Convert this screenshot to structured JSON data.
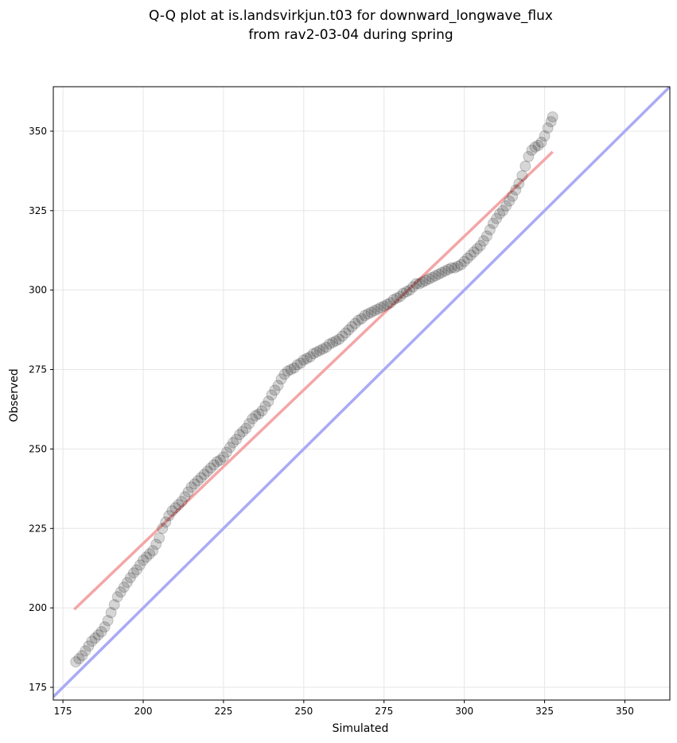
{
  "chart_data": {
    "type": "scatter",
    "title": "Q-Q plot at is.landsvirkjun.t03 for downward_longwave_flux",
    "subtitle": "from rav2-03-04 during spring",
    "xlabel": "Simulated",
    "ylabel": "Observed",
    "xlim": [
      172,
      364
    ],
    "ylim": [
      171,
      364
    ],
    "xticks": [
      175,
      200,
      225,
      250,
      275,
      300,
      325,
      350
    ],
    "yticks": [
      175,
      200,
      225,
      250,
      275,
      300,
      325,
      350
    ],
    "grid": true,
    "points": [
      [
        179,
        183
      ],
      [
        180,
        184
      ],
      [
        181,
        185
      ],
      [
        182,
        186.5
      ],
      [
        183,
        188
      ],
      [
        184,
        189.5
      ],
      [
        185,
        190.5
      ],
      [
        186,
        191.5
      ],
      [
        187,
        192.5
      ],
      [
        188,
        194
      ],
      [
        189,
        196
      ],
      [
        190,
        198.5
      ],
      [
        191,
        201
      ],
      [
        192,
        203.5
      ],
      [
        193,
        205
      ],
      [
        194,
        206.5
      ],
      [
        195,
        208
      ],
      [
        196,
        209.5
      ],
      [
        197,
        211
      ],
      [
        198,
        212
      ],
      [
        199,
        213.5
      ],
      [
        200,
        215
      ],
      [
        201,
        216
      ],
      [
        202,
        217
      ],
      [
        203,
        218
      ],
      [
        204,
        220
      ],
      [
        205,
        222
      ],
      [
        206,
        225
      ],
      [
        207,
        227
      ],
      [
        208,
        229
      ],
      [
        209,
        230.5
      ],
      [
        210,
        231.5
      ],
      [
        211,
        232.5
      ],
      [
        212,
        233.5
      ],
      [
        213,
        235
      ],
      [
        214,
        236.5
      ],
      [
        215,
        238
      ],
      [
        216,
        239
      ],
      [
        217,
        240
      ],
      [
        218,
        241
      ],
      [
        219,
        242
      ],
      [
        220,
        243
      ],
      [
        221,
        244
      ],
      [
        222,
        245
      ],
      [
        223,
        246
      ],
      [
        224,
        246.5
      ],
      [
        225,
        247.5
      ],
      [
        226,
        249
      ],
      [
        227,
        250.5
      ],
      [
        228,
        252
      ],
      [
        229,
        253
      ],
      [
        230,
        254.5
      ],
      [
        231,
        255.5
      ],
      [
        232,
        256.5
      ],
      [
        233,
        258
      ],
      [
        234,
        259.5
      ],
      [
        235,
        260.5
      ],
      [
        236,
        261
      ],
      [
        237,
        262
      ],
      [
        238,
        263.5
      ],
      [
        239,
        265
      ],
      [
        240,
        267
      ],
      [
        241,
        268.5
      ],
      [
        242,
        270
      ],
      [
        243,
        272
      ],
      [
        244,
        273.5
      ],
      [
        245,
        274.5
      ],
      [
        246,
        275
      ],
      [
        247,
        275.5
      ],
      [
        248,
        276.5
      ],
      [
        249,
        277
      ],
      [
        250,
        278
      ],
      [
        251,
        278.5
      ],
      [
        252,
        279
      ],
      [
        253,
        280
      ],
      [
        254,
        280.5
      ],
      [
        255,
        281
      ],
      [
        256,
        281.5
      ],
      [
        257,
        282
      ],
      [
        258,
        283
      ],
      [
        259,
        283.5
      ],
      [
        260,
        284
      ],
      [
        261,
        284.5
      ],
      [
        262,
        285.5
      ],
      [
        263,
        286.5
      ],
      [
        264,
        287.5
      ],
      [
        265,
        288.5
      ],
      [
        266,
        289.5
      ],
      [
        267,
        290.5
      ],
      [
        268,
        291
      ],
      [
        269,
        292
      ],
      [
        270,
        292.5
      ],
      [
        271,
        293
      ],
      [
        272,
        293.5
      ],
      [
        273,
        294
      ],
      [
        274,
        294.5
      ],
      [
        275,
        295
      ],
      [
        276,
        295.5
      ],
      [
        277,
        296
      ],
      [
        278,
        297
      ],
      [
        279,
        297.5
      ],
      [
        280,
        298
      ],
      [
        281,
        299
      ],
      [
        282,
        299.5
      ],
      [
        283,
        300
      ],
      [
        284,
        301
      ],
      [
        285,
        302
      ],
      [
        286,
        302
      ],
      [
        287,
        302.5
      ],
      [
        288,
        303
      ],
      [
        289,
        303.5
      ],
      [
        290,
        304
      ],
      [
        291,
        304.5
      ],
      [
        292,
        305
      ],
      [
        293,
        305.5
      ],
      [
        294,
        306
      ],
      [
        295,
        306.5
      ],
      [
        296,
        307
      ],
      [
        297,
        307
      ],
      [
        298,
        307.5
      ],
      [
        299,
        308
      ],
      [
        300,
        309
      ],
      [
        301,
        310
      ],
      [
        302,
        311
      ],
      [
        303,
        312
      ],
      [
        304,
        313
      ],
      [
        305,
        314
      ],
      [
        306,
        315.5
      ],
      [
        307,
        317
      ],
      [
        308,
        319
      ],
      [
        309,
        321
      ],
      [
        310,
        322.5
      ],
      [
        311,
        324
      ],
      [
        312,
        325
      ],
      [
        313,
        326.5
      ],
      [
        314,
        328
      ],
      [
        315,
        329.5
      ],
      [
        316,
        331.5
      ],
      [
        317,
        333.5
      ],
      [
        318,
        336
      ],
      [
        319,
        339
      ],
      [
        320,
        342
      ],
      [
        321,
        344
      ],
      [
        322,
        345
      ],
      [
        323,
        345.5
      ],
      [
        324,
        346.5
      ],
      [
        325,
        348.5
      ],
      [
        326,
        351
      ],
      [
        327,
        353
      ],
      [
        327.5,
        354.5
      ]
    ],
    "regression_line": {
      "x": [
        178.5,
        327.5
      ],
      "y": [
        199.5,
        343.5
      ],
      "color": "#f4a6a6"
    },
    "identity_line": {
      "x": [
        172,
        364
      ],
      "y": [
        172,
        364
      ],
      "color": "#aaaaf6"
    },
    "point_color": "#000000"
  }
}
